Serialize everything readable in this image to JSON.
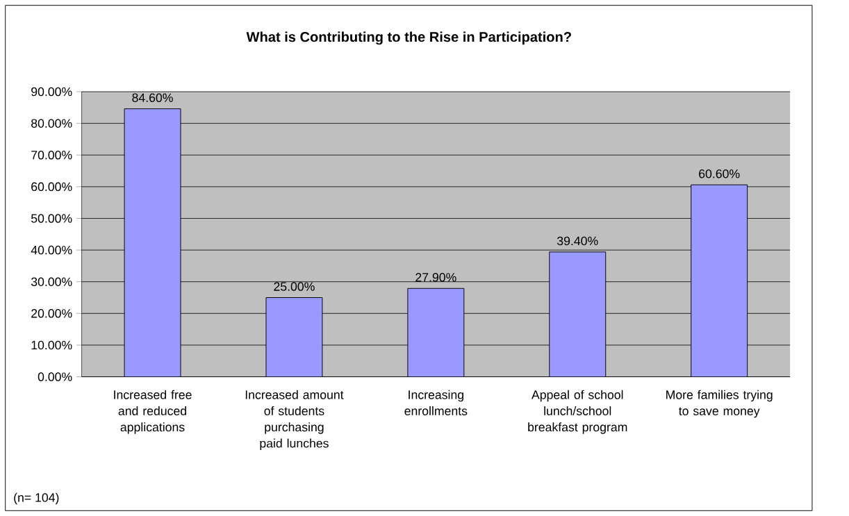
{
  "chart_data": {
    "type": "bar",
    "title": "What is Contributing to the Rise in Participation?",
    "categories": [
      "Increased free and reduced applications",
      "Increased amount of students purchasing paid lunches",
      "Increasing enrollments",
      "Appeal of school lunch/school breakfast program",
      "More families trying to save money"
    ],
    "values": [
      84.6,
      25.0,
      27.9,
      39.4,
      60.6
    ],
    "value_labels": [
      "84.60%",
      "25.00%",
      "27.90%",
      "39.40%",
      "60.60%"
    ],
    "color": "#9999ff",
    "ylim": [
      0,
      90
    ],
    "yticks": [
      {
        "value": 0,
        "label": "0.00%"
      },
      {
        "value": 10,
        "label": "10.00%"
      },
      {
        "value": 20,
        "label": "20.00%"
      },
      {
        "value": 30,
        "label": "30.00%"
      },
      {
        "value": 40,
        "label": "40.00%"
      },
      {
        "value": 50,
        "label": "50.00%"
      },
      {
        "value": 60,
        "label": "60.00%"
      },
      {
        "value": 70,
        "label": "70.00%"
      },
      {
        "value": 80,
        "label": "80.00%"
      },
      {
        "value": 90,
        "label": "90.00%"
      }
    ],
    "grid": "y",
    "annotations": [
      "(n= 104)"
    ]
  }
}
